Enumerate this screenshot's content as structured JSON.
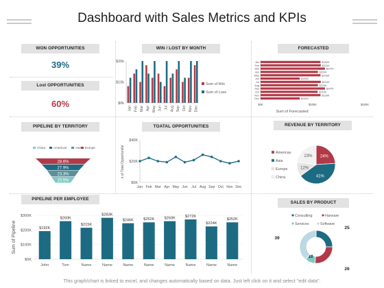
{
  "header": {
    "title": "Dashboard with Sales Metrics and KPIs"
  },
  "kpis": [
    {
      "label": "WON OPPORTUNITIES",
      "value": "39%",
      "color": "#1d6b82"
    },
    {
      "label": "Lost OPPORTUNITIES",
      "value": "60%",
      "color": "#b23a48"
    }
  ],
  "sections": {
    "win_lost": "WIN / LOST BY MONTH",
    "forecasted": "FORECASTED",
    "pipeline_territory": "PIPELINE BY TERRITORY",
    "total_opportunities": "TOATAL OPPORTUNITIES",
    "revenue_territory": "REVENUE BY TERRITORY",
    "pipeline_employee": "PIPELINE PER EMPLOYEE",
    "sales_product": "SALES BY PRODUCT"
  },
  "colors": {
    "teal": "#1d6b82",
    "red": "#b23a48",
    "lightteal": "#7ec9c4",
    "gray": "#e0e0e0"
  },
  "footer": {
    "note": "This graph/chart is linked to excel, and changes automatically based on data. Just left click on it and select \"edit data\"."
  },
  "chart_data": [
    {
      "id": "win_lost_by_month",
      "type": "bar",
      "categories": [
        "Jan",
        "Feb",
        "Mar",
        "Apr",
        "May",
        "Jun",
        "Jul",
        "Aug",
        "Sep",
        "Oct",
        "Nov",
        "Dec"
      ],
      "series": [
        {
          "name": "Sum of Win",
          "color": "#b23a48",
          "values": [
            8,
            14,
            10,
            18,
            12,
            14,
            8,
            12,
            16,
            10,
            12,
            18
          ]
        },
        {
          "name": "Sum of Loss",
          "color": "#1d6b82",
          "values": [
            12,
            16,
            20,
            14,
            20,
            10,
            20,
            14,
            20,
            12,
            20,
            20
          ]
        }
      ],
      "ytick_labels": [
        "$0k",
        "$10k",
        "$20k"
      ],
      "ylim": [
        0,
        20
      ],
      "legend": "right"
    },
    {
      "id": "forecasted",
      "type": "bar",
      "orientation": "horizontal",
      "categories": [
        "Jan",
        "Feb",
        "Mar",
        "Apr",
        "May",
        "Jun",
        "Jul",
        "Aug",
        "Sep",
        "Oct",
        "Nov",
        "Dec"
      ],
      "values": [
        230,
        231,
        247,
        220,
        230,
        150,
        231,
        220,
        247,
        219,
        230,
        150
      ],
      "value_labels": [
        "$230K",
        "$231K",
        "$247K",
        "$220K",
        "$230K",
        "$150K",
        "$231K",
        "$220K",
        "$247K",
        "$219K",
        "$230K",
        "$150K"
      ],
      "xtick_labels": [
        "$0K",
        "$200K",
        "$400K"
      ],
      "xlim": [
        0,
        400
      ],
      "xlabel": "Sum of Forecasted",
      "color": "#b23a48"
    },
    {
      "id": "pipeline_by_territory",
      "type": "funnel",
      "legend": [
        "China",
        "Americas",
        "Asia",
        "Europe"
      ],
      "colors": [
        "#7ec9c4",
        "#1d6b82",
        "#5c8f9a",
        "#b23a48"
      ],
      "values": [
        28.6,
        27.9,
        23.3,
        20.5
      ],
      "value_labels": [
        "28.6%",
        "27.9%",
        "23.3%",
        "20.5%"
      ]
    },
    {
      "id": "total_opportunities",
      "type": "line",
      "categories": [
        "Jan",
        "Feb",
        "Mar",
        "Apr",
        "May",
        "Jun",
        "Jul",
        "Aug",
        "Sep",
        "Oct",
        "Nov",
        "Dec"
      ],
      "values": [
        20,
        23,
        20,
        19,
        24,
        19,
        21,
        26,
        24,
        20,
        18,
        20
      ],
      "ytick_labels": [
        "$0K",
        "$20K",
        "$40K"
      ],
      "ylim": [
        0,
        40
      ],
      "ylabel": "n of Total Opportunitie",
      "color": "#1d6b82"
    },
    {
      "id": "revenue_by_territory",
      "type": "pie",
      "labels": [
        "Americas",
        "Asia",
        "Europe",
        "China"
      ],
      "values": [
        24,
        41,
        12,
        23
      ],
      "value_labels": [
        "24%",
        "41%",
        "12%",
        "23%"
      ],
      "colors": [
        "#b23a48",
        "#1d6b82",
        "#e6e6e6",
        "#f2f2f2"
      ],
      "legend": "left"
    },
    {
      "id": "pipeline_per_employee",
      "type": "bar",
      "categories": [
        "John",
        "Tom",
        "Name",
        "Name",
        "Name",
        "Name",
        "Name",
        "Name",
        "Name",
        "Name"
      ],
      "values": [
        192,
        260,
        215,
        283,
        246,
        252,
        260,
        272,
        224,
        252
      ],
      "value_labels": [
        "$192K",
        "$260K",
        "$215K",
        "$283K",
        "$246K",
        "$252K",
        "$260K",
        "$272K",
        "$224K",
        "$252K"
      ],
      "ytick_labels": [
        "$0K",
        "$100K",
        "$200K",
        "$300K"
      ],
      "ylim": [
        0,
        300
      ],
      "ylabel": "Sum of Pipeline",
      "color": "#1d6b82"
    },
    {
      "id": "sales_by_product",
      "type": "donut",
      "labels": [
        "Consulting",
        "Harware",
        "Services",
        "Software"
      ],
      "values": [
        25,
        26,
        10,
        39
      ],
      "colors": [
        "#1d6b82",
        "#b23a48",
        "#7ec9c4",
        "#bcd8e2"
      ],
      "legend": "top"
    }
  ]
}
